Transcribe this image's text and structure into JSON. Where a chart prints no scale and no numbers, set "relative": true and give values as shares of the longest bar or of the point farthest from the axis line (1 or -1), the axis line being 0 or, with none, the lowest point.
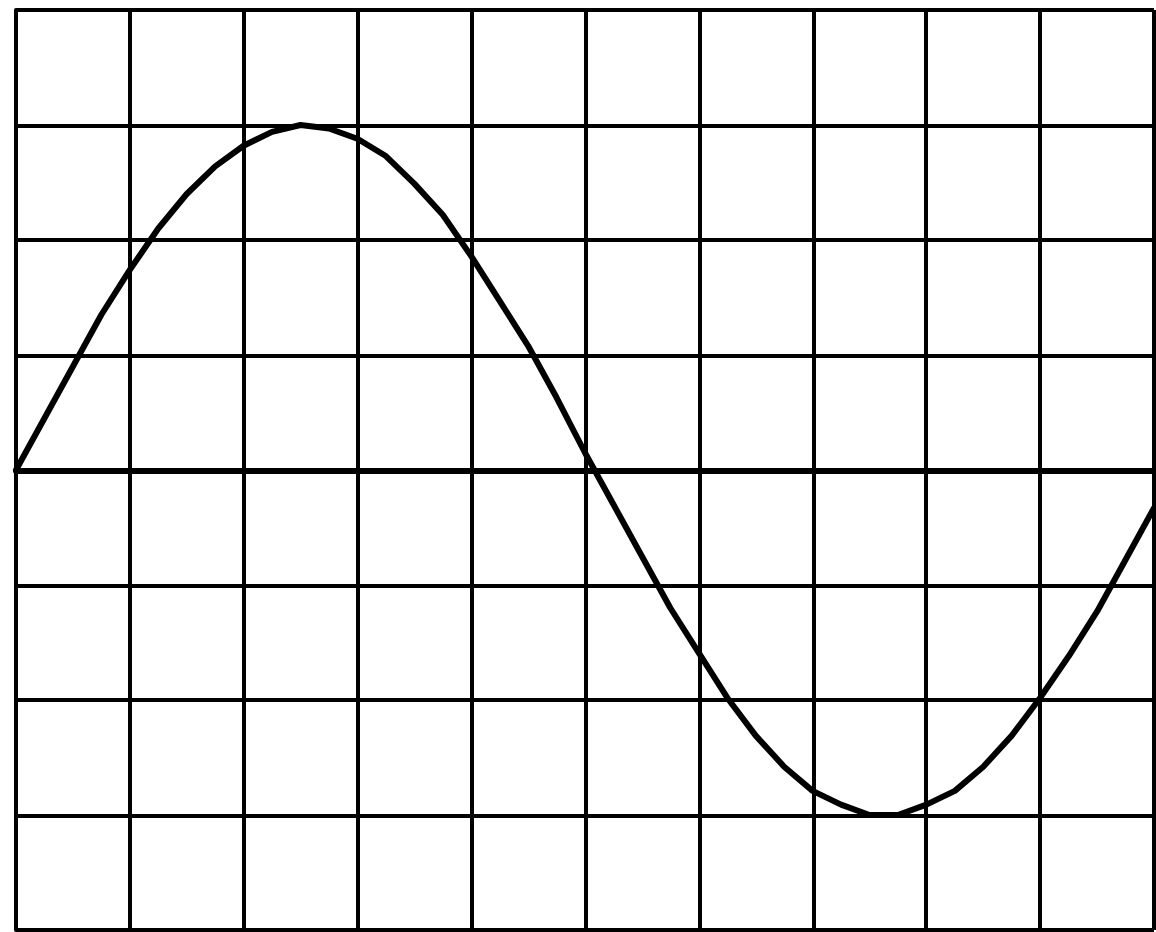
{
  "chart_data": {
    "type": "line",
    "relative": true,
    "grid": true,
    "marker": "none",
    "line_style": "solid",
    "categories": [
      null,
      null,
      null,
      null,
      null,
      null,
      null,
      null,
      null,
      null,
      null,
      null,
      null,
      null,
      null,
      null,
      null,
      null,
      null,
      null,
      null,
      null,
      null,
      null,
      null,
      null,
      null,
      null,
      null,
      null,
      null,
      null,
      null,
      null,
      null,
      null,
      null,
      null,
      null,
      null,
      null
    ],
    "series": [
      {
        "color": "#000000",
        "values": [
          0,
          0.15,
          0.3,
          0.45,
          0.58,
          0.7,
          0.8,
          0.88,
          0.94,
          0.98,
          1,
          0.99,
          0.96,
          0.91,
          0.83,
          0.74,
          0.62,
          0.49,
          0.36,
          0.21,
          0.05,
          -0.1,
          -0.25,
          -0.4,
          -0.53,
          -0.66,
          -0.77,
          -0.86,
          -0.93,
          -0.97,
          -1,
          -1,
          -0.97,
          -0.93,
          -0.86,
          -0.77,
          -0.66,
          -0.54,
          -0.41,
          -0.26,
          -0.11
        ]
      }
    ]
  }
}
